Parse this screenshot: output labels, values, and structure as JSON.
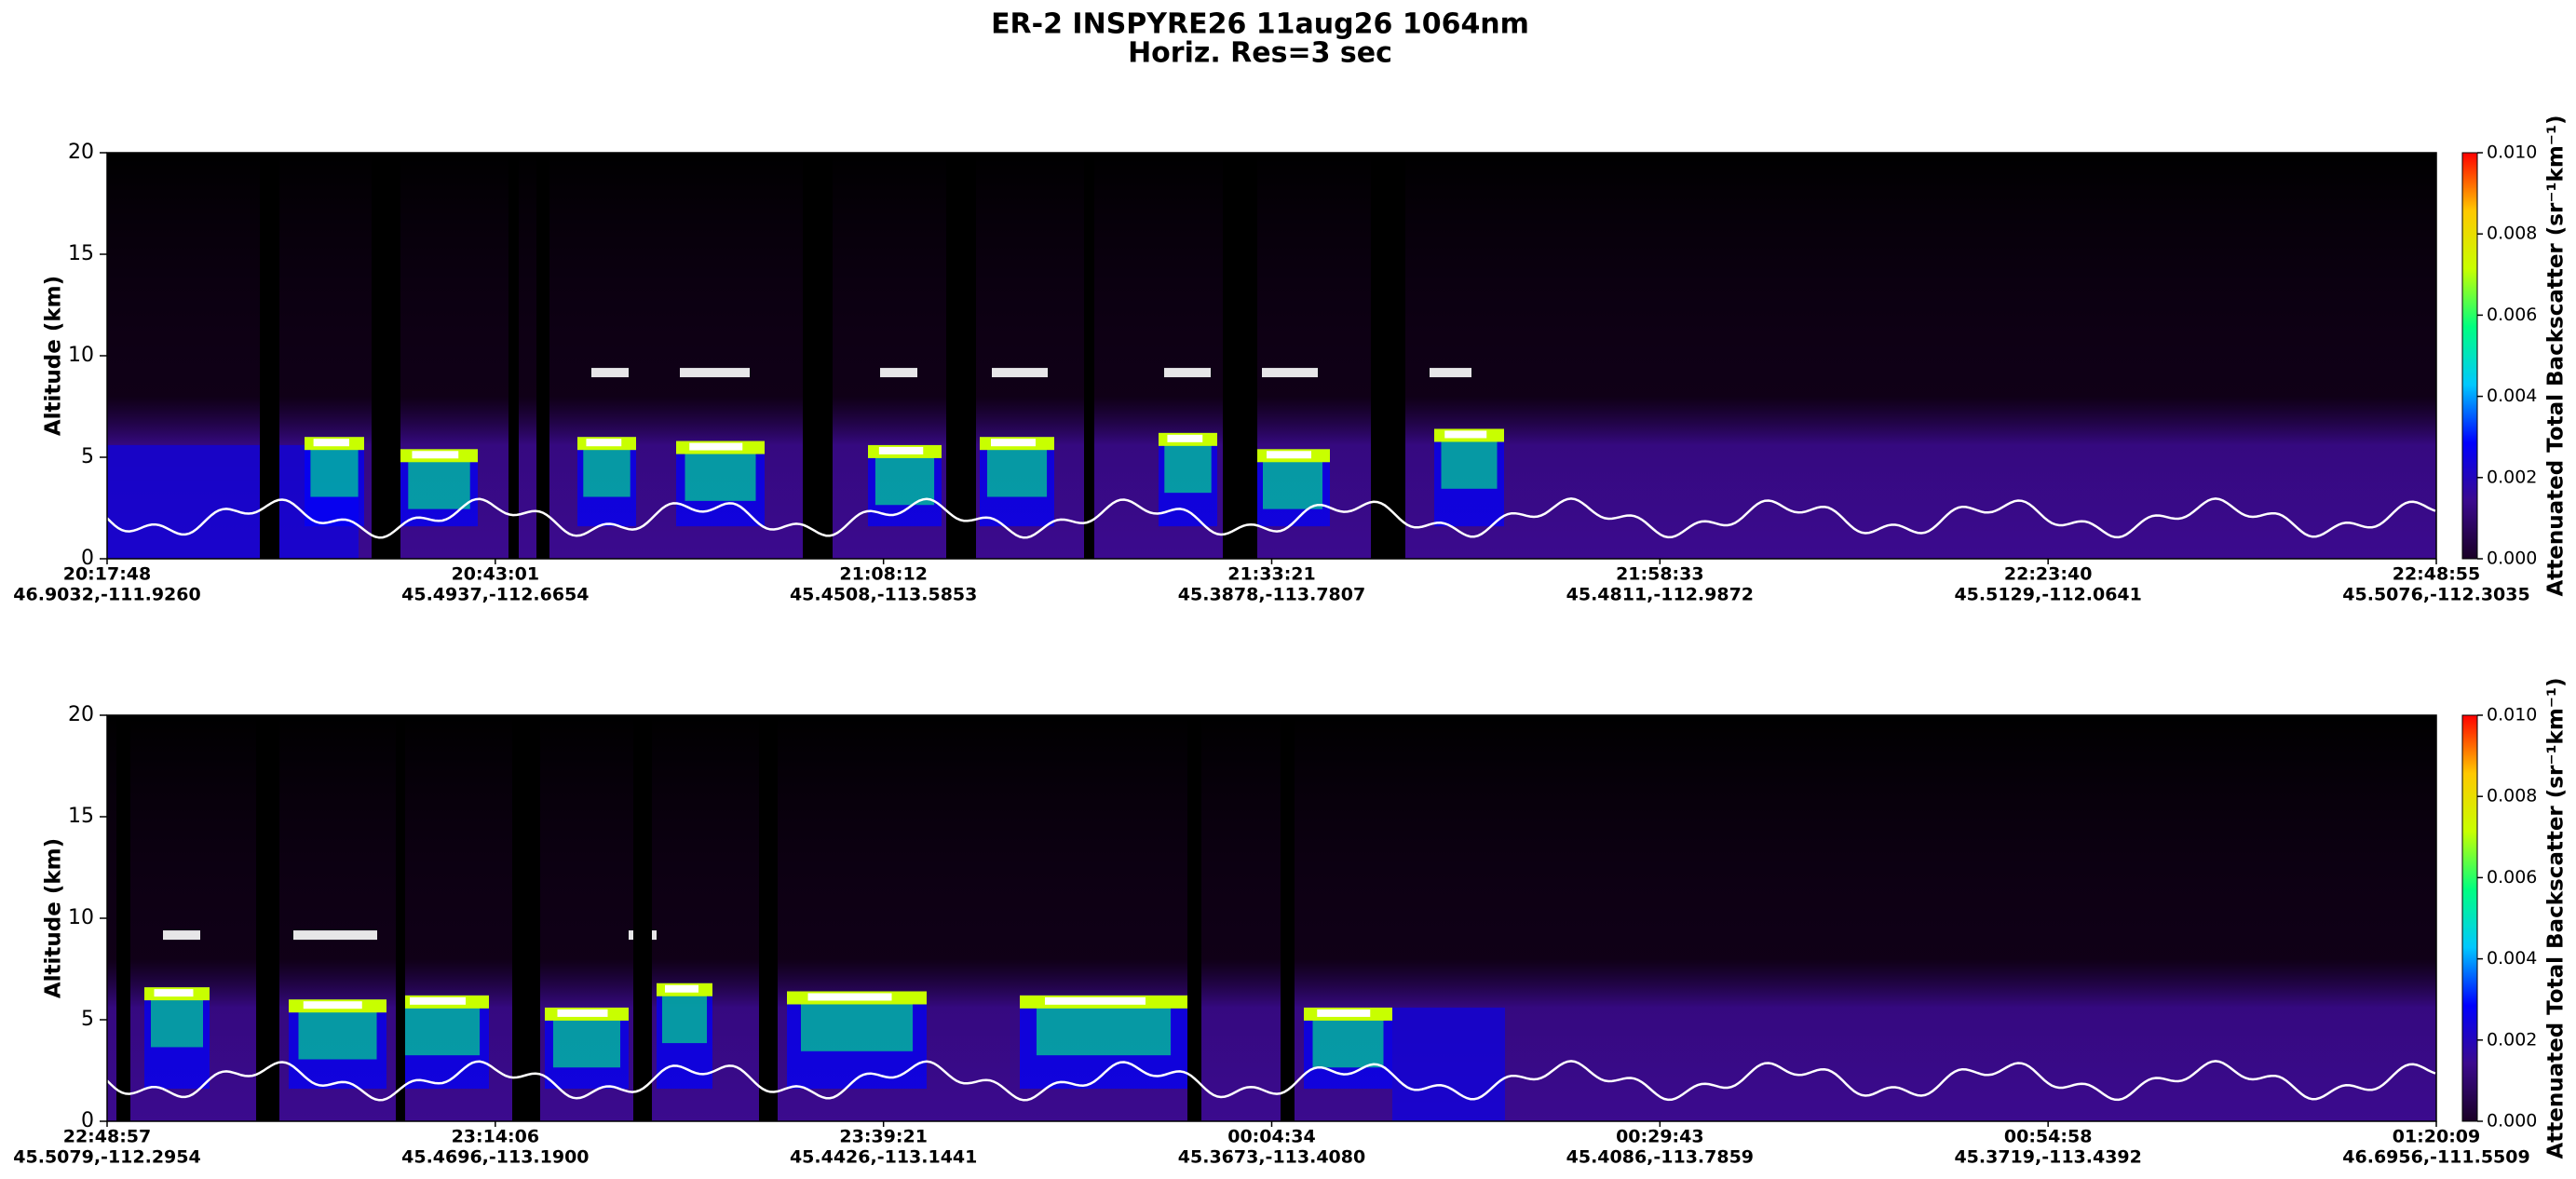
{
  "title": "ER-2  INSPYRE26  11aug26  1064nm",
  "subtitle": "Horiz. Res=3 sec",
  "chart_data": [
    {
      "type": "heatmap",
      "ylabel": "Altitude (km)",
      "ylim": [
        0,
        20
      ],
      "yticks": [
        0,
        5,
        10,
        15,
        20
      ],
      "xticks": [
        {
          "time": "20:17:48",
          "location": "46.9032,-111.9260"
        },
        {
          "time": "20:43:01",
          "location": "45.4937,-112.6654"
        },
        {
          "time": "21:08:12",
          "location": "45.4508,-113.5853"
        },
        {
          "time": "21:33:21",
          "location": "45.3878,-113.7807"
        },
        {
          "time": "21:58:33",
          "location": "45.4811,-112.9872"
        },
        {
          "time": "22:23:40",
          "location": "45.5129,-112.0641"
        },
        {
          "time": "22:48:55",
          "location": "45.5076,-112.3035"
        }
      ],
      "colorbar": {
        "label": "Attenuated Total Backscatter (sr⁻¹km⁻¹)",
        "lim": [
          0,
          0.01
        ],
        "ticks": [
          {
            "value": 0,
            "label": "0.000"
          },
          {
            "value": 0.002,
            "label": "0.002"
          },
          {
            "value": 0.004,
            "label": "0.004"
          },
          {
            "value": 0.006,
            "label": "0.006"
          },
          {
            "value": 0.008,
            "label": "0.008"
          },
          {
            "value": 0.01,
            "label": "0.010"
          }
        ],
        "colors": [
          "#1a0026",
          "#3b0a8e",
          "#0000ff",
          "#00c8ff",
          "#00ff80",
          "#c8ff00",
          "#ffc800",
          "#ff0000"
        ]
      }
    },
    {
      "type": "heatmap",
      "ylabel": "Altitude (km)",
      "ylim": [
        0,
        20
      ],
      "yticks": [
        0,
        5,
        10,
        15,
        20
      ],
      "xticks": [
        {
          "time": "22:48:57",
          "location": "45.5079,-112.2954"
        },
        {
          "time": "23:14:06",
          "location": "45.4696,-113.1900"
        },
        {
          "time": "23:39:21",
          "location": "45.4426,-113.1441"
        },
        {
          "time": "00:04:34",
          "location": "45.3673,-113.4080"
        },
        {
          "time": "00:29:43",
          "location": "45.4086,-113.7859"
        },
        {
          "time": "00:54:58",
          "location": "45.3719,-113.4392"
        },
        {
          "time": "01:20:09",
          "location": "46.6956,-111.5509"
        }
      ],
      "colorbar": {
        "label": "Attenuated Total Backscatter (sr⁻¹km⁻¹)",
        "lim": [
          0,
          0.01
        ],
        "ticks": [
          {
            "value": 0,
            "label": "0.000"
          },
          {
            "value": 0.002,
            "label": "0.002"
          },
          {
            "value": 0.004,
            "label": "0.004"
          },
          {
            "value": 0.006,
            "label": "0.006"
          },
          {
            "value": 0.008,
            "label": "0.008"
          },
          {
            "value": 0.01,
            "label": "0.010"
          }
        ],
        "colors": [
          "#1a0026",
          "#3b0a8e",
          "#0000ff",
          "#00c8ff",
          "#00ff80",
          "#c8ff00",
          "#ffc800",
          "#ff0000"
        ]
      }
    }
  ]
}
